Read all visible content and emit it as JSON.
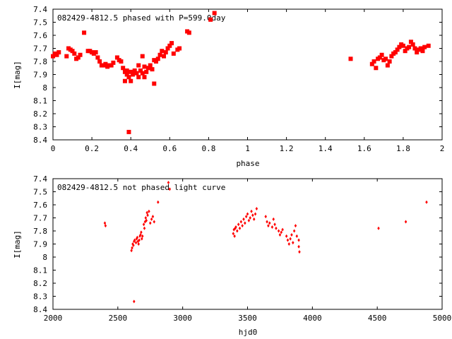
{
  "chart_data": [
    {
      "type": "scatter",
      "title": "082429-4812.5 phased with P=599.0day",
      "xlabel": "phase",
      "ylabel": "I[mag]",
      "xlim": [
        0,
        2
      ],
      "ylim": [
        7.4,
        8.4
      ],
      "y_inverted": true,
      "xticks": [
        "0",
        "0.2",
        "0.4",
        "0.6",
        "0.8",
        "1",
        "1.2",
        "1.4",
        "1.6",
        "1.8",
        "2"
      ],
      "yticks": [
        "7.4",
        "7.5",
        "7.6",
        "7.7",
        "7.8",
        "7.9",
        "8",
        "8.1",
        "8.2",
        "8.3",
        "8.4"
      ],
      "grid": false,
      "marker_color": "#ff0000",
      "series": [
        {
          "points": [
            [
              0.0,
              7.76
            ],
            [
              0.01,
              7.74
            ],
            [
              0.02,
              7.75
            ],
            [
              0.03,
              7.73
            ],
            [
              0.07,
              7.76
            ],
            [
              0.08,
              7.7
            ],
            [
              0.09,
              7.71
            ],
            [
              0.1,
              7.72
            ],
            [
              0.11,
              7.74
            ],
            [
              0.12,
              7.78
            ],
            [
              0.13,
              7.77
            ],
            [
              0.14,
              7.75
            ],
            [
              0.16,
              7.58
            ],
            [
              0.18,
              7.72
            ],
            [
              0.19,
              7.72
            ],
            [
              0.2,
              7.73
            ],
            [
              0.21,
              7.74
            ],
            [
              0.22,
              7.73
            ],
            [
              0.23,
              7.77
            ],
            [
              0.24,
              7.8
            ],
            [
              0.25,
              7.83
            ],
            [
              0.26,
              7.83
            ],
            [
              0.27,
              7.82
            ],
            [
              0.28,
              7.84
            ],
            [
              0.29,
              7.83
            ],
            [
              0.3,
              7.83
            ],
            [
              0.31,
              7.81
            ],
            [
              0.33,
              7.77
            ],
            [
              0.34,
              7.79
            ],
            [
              0.35,
              7.8
            ],
            [
              0.36,
              7.85
            ],
            [
              0.37,
              7.88
            ],
            [
              0.37,
              7.95
            ],
            [
              0.38,
              7.9
            ],
            [
              0.38,
              7.87
            ],
            [
              0.39,
              7.92
            ],
            [
              0.39,
              8.34
            ],
            [
              0.4,
              7.88
            ],
            [
              0.4,
              7.95
            ],
            [
              0.41,
              7.9
            ],
            [
              0.42,
              7.87
            ],
            [
              0.43,
              7.89
            ],
            [
              0.44,
              7.92
            ],
            [
              0.44,
              7.83
            ],
            [
              0.45,
              7.87
            ],
            [
              0.46,
              7.89
            ],
            [
              0.46,
              7.76
            ],
            [
              0.47,
              7.84
            ],
            [
              0.47,
              7.92
            ],
            [
              0.48,
              7.88
            ],
            [
              0.49,
              7.85
            ],
            [
              0.5,
              7.83
            ],
            [
              0.51,
              7.86
            ],
            [
              0.52,
              7.79
            ],
            [
              0.52,
              7.97
            ],
            [
              0.53,
              7.8
            ],
            [
              0.54,
              7.78
            ],
            [
              0.55,
              7.75
            ],
            [
              0.56,
              7.72
            ],
            [
              0.57,
              7.76
            ],
            [
              0.58,
              7.73
            ],
            [
              0.59,
              7.7
            ],
            [
              0.6,
              7.68
            ],
            [
              0.61,
              7.66
            ],
            [
              0.62,
              7.74
            ],
            [
              0.64,
              7.71
            ],
            [
              0.65,
              7.7
            ],
            [
              0.69,
              7.57
            ],
            [
              0.7,
              7.58
            ],
            [
              0.81,
              7.48
            ],
            [
              0.83,
              7.43
            ],
            [
              1.53,
              7.78
            ],
            [
              1.64,
              7.82
            ],
            [
              1.65,
              7.8
            ],
            [
              1.66,
              7.85
            ],
            [
              1.67,
              7.78
            ],
            [
              1.68,
              7.77
            ],
            [
              1.69,
              7.75
            ],
            [
              1.7,
              7.79
            ],
            [
              1.71,
              7.78
            ],
            [
              1.72,
              7.83
            ],
            [
              1.73,
              7.8
            ],
            [
              1.74,
              7.76
            ],
            [
              1.75,
              7.74
            ],
            [
              1.76,
              7.73
            ],
            [
              1.77,
              7.71
            ],
            [
              1.78,
              7.69
            ],
            [
              1.79,
              7.67
            ],
            [
              1.8,
              7.68
            ],
            [
              1.81,
              7.72
            ],
            [
              1.82,
              7.7
            ],
            [
              1.83,
              7.69
            ],
            [
              1.84,
              7.65
            ],
            [
              1.85,
              7.67
            ],
            [
              1.86,
              7.7
            ],
            [
              1.87,
              7.73
            ],
            [
              1.88,
              7.71
            ],
            [
              1.89,
              7.7
            ],
            [
              1.9,
              7.72
            ],
            [
              1.91,
              7.69
            ],
            [
              1.93,
              7.68
            ]
          ]
        }
      ]
    },
    {
      "type": "scatter",
      "title": "082429-4812.5 not phased light curve",
      "xlabel": "hjd0",
      "ylabel": "I[mag]",
      "xlim": [
        2000,
        5000
      ],
      "ylim": [
        7.4,
        8.4
      ],
      "y_inverted": true,
      "xticks": [
        "2000",
        "2500",
        "3000",
        "3500",
        "4000",
        "4500",
        "5000"
      ],
      "yticks": [
        "7.4",
        "7.5",
        "7.6",
        "7.7",
        "7.8",
        "7.9",
        "8",
        "8.1",
        "8.2",
        "8.3",
        "8.4"
      ],
      "grid": false,
      "marker_color": "#ff0000",
      "series": [
        {
          "points": [
            [
              2400,
              7.74
            ],
            [
              2405,
              7.76
            ],
            [
              2605,
              7.95
            ],
            [
              2610,
              7.93
            ],
            [
              2615,
              7.9
            ],
            [
              2620,
              7.91
            ],
            [
              2625,
              7.88
            ],
            [
              2625,
              8.34
            ],
            [
              2630,
              7.87
            ],
            [
              2640,
              7.89
            ],
            [
              2645,
              7.86
            ],
            [
              2650,
              7.85
            ],
            [
              2655,
              7.88
            ],
            [
              2660,
              7.9
            ],
            [
              2665,
              7.87
            ],
            [
              2670,
              7.84
            ],
            [
              2675,
              7.83
            ],
            [
              2680,
              7.81
            ],
            [
              2685,
              7.86
            ],
            [
              2690,
              7.84
            ],
            [
              2700,
              7.75
            ],
            [
              2705,
              7.78
            ],
            [
              2710,
              7.73
            ],
            [
              2715,
              7.7
            ],
            [
              2720,
              7.72
            ],
            [
              2725,
              7.66
            ],
            [
              2730,
              7.68
            ],
            [
              2740,
              7.65
            ],
            [
              2750,
              7.74
            ],
            [
              2760,
              7.71
            ],
            [
              2770,
              7.69
            ],
            [
              2780,
              7.73
            ],
            [
              2810,
              7.58
            ],
            [
              2890,
              7.43
            ],
            [
              2900,
              7.48
            ],
            [
              3390,
              7.82
            ],
            [
              3395,
              7.79
            ],
            [
              3400,
              7.84
            ],
            [
              3405,
              7.78
            ],
            [
              3410,
              7.77
            ],
            [
              3420,
              7.8
            ],
            [
              3430,
              7.75
            ],
            [
              3440,
              7.78
            ],
            [
              3450,
              7.73
            ],
            [
              3460,
              7.76
            ],
            [
              3470,
              7.71
            ],
            [
              3480,
              7.74
            ],
            [
              3490,
              7.69
            ],
            [
              3500,
              7.67
            ],
            [
              3510,
              7.72
            ],
            [
              3520,
              7.7
            ],
            [
              3530,
              7.65
            ],
            [
              3540,
              7.68
            ],
            [
              3550,
              7.71
            ],
            [
              3560,
              7.67
            ],
            [
              3570,
              7.63
            ],
            [
              3640,
              7.69
            ],
            [
              3650,
              7.73
            ],
            [
              3660,
              7.76
            ],
            [
              3670,
              7.74
            ],
            [
              3690,
              7.77
            ],
            [
              3700,
              7.71
            ],
            [
              3710,
              7.75
            ],
            [
              3720,
              7.78
            ],
            [
              3740,
              7.8
            ],
            [
              3750,
              7.83
            ],
            [
              3760,
              7.81
            ],
            [
              3770,
              7.79
            ],
            [
              3800,
              7.84
            ],
            [
              3810,
              7.87
            ],
            [
              3820,
              7.9
            ],
            [
              3830,
              7.86
            ],
            [
              3840,
              7.83
            ],
            [
              3850,
              7.89
            ],
            [
              3860,
              7.8
            ],
            [
              3870,
              7.76
            ],
            [
              3880,
              7.84
            ],
            [
              3895,
              7.87
            ],
            [
              3895,
              7.92
            ],
            [
              3900,
              7.96
            ],
            [
              4510,
              7.78
            ],
            [
              4720,
              7.73
            ],
            [
              4880,
              7.58
            ]
          ]
        }
      ]
    }
  ]
}
